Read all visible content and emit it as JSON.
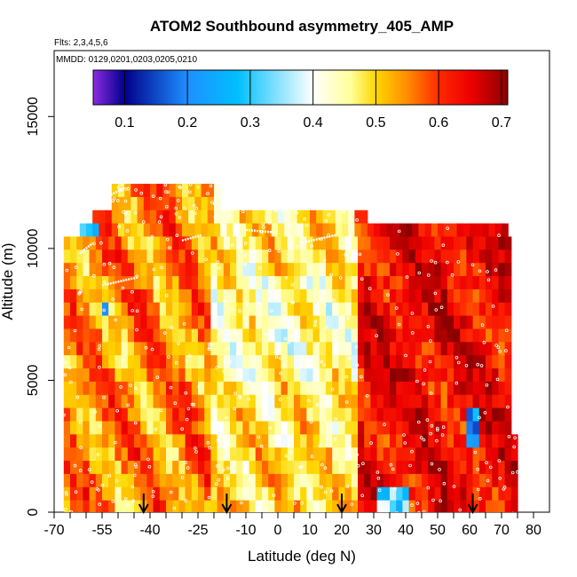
{
  "chart_data": {
    "type": "heatmap",
    "title": "ATOM2 Southbound asymmetry_405_AMP",
    "subtitle_flights": "Flts: 2,3,4,5,6",
    "subtitle_dates": "MMDD: 0129,0201,0203,0205,0210",
    "xlabel": "Latitude (deg N)",
    "ylabel": "Altitude (m)",
    "xlim": [
      -70,
      85
    ],
    "ylim": [
      0,
      17500
    ],
    "x_ticks": [
      -70,
      -55,
      -40,
      -25,
      -10,
      0,
      10,
      20,
      30,
      40,
      50,
      60,
      70,
      80
    ],
    "x_minor_ticks": [
      -65,
      -60,
      -50,
      -45,
      -35,
      -30,
      -20,
      -15,
      -5,
      5,
      15,
      25,
      35,
      45,
      55,
      65,
      75
    ],
    "y_ticks": [
      0,
      5000,
      10000,
      15000
    ],
    "colorbar": {
      "min": 0.05,
      "max": 0.71,
      "ticks": [
        "0.1",
        "0.2",
        "0.3",
        "0.4",
        "0.5",
        "0.6",
        "0.7"
      ],
      "tick_values": [
        0.1,
        0.2,
        0.3,
        0.4,
        0.5,
        0.6,
        0.7
      ],
      "stops": [
        {
          "v": 0.05,
          "c": "#8a2be2"
        },
        {
          "v": 0.1,
          "c": "#00008b"
        },
        {
          "v": 0.2,
          "c": "#1e90ff"
        },
        {
          "v": 0.28,
          "c": "#00bfff"
        },
        {
          "v": 0.4,
          "c": "#ffffff"
        },
        {
          "v": 0.46,
          "c": "#ffff99"
        },
        {
          "v": 0.5,
          "c": "#ffd700"
        },
        {
          "v": 0.55,
          "c": "#ff8c00"
        },
        {
          "v": 0.6,
          "c": "#ff2a00"
        },
        {
          "v": 0.65,
          "c": "#ee0000"
        },
        {
          "v": 0.71,
          "c": "#8b0000"
        }
      ]
    },
    "flight_arrows_latitude": [
      -42,
      -16,
      20,
      61
    ],
    "altitude_bands": [
      {
        "alt": 12200,
        "lat_min": -52,
        "lat_max": -18
      },
      {
        "alt": 11700,
        "lat_min": -52,
        "lat_max": -18
      },
      {
        "alt": 11200,
        "lat_min": -58,
        "lat_max": 27
      },
      {
        "alt": 10700,
        "lat_min": -62,
        "lat_max": 72
      },
      {
        "alt": 10200,
        "lat_min": -67,
        "lat_max": 72
      },
      {
        "alt": 9700,
        "lat_min": -67,
        "lat_max": 72
      },
      {
        "alt": 9200,
        "lat_min": -67,
        "lat_max": 72
      },
      {
        "alt": 8700,
        "lat_min": -67,
        "lat_max": 72
      },
      {
        "alt": 8200,
        "lat_min": -67,
        "lat_max": 72
      },
      {
        "alt": 7700,
        "lat_min": -67,
        "lat_max": 72
      },
      {
        "alt": 7200,
        "lat_min": -67,
        "lat_max": 72
      },
      {
        "alt": 6700,
        "lat_min": -67,
        "lat_max": 72
      },
      {
        "alt": 6200,
        "lat_min": -67,
        "lat_max": 72
      },
      {
        "alt": 5700,
        "lat_min": -67,
        "lat_max": 72
      },
      {
        "alt": 5200,
        "lat_min": -67,
        "lat_max": 72
      },
      {
        "alt": 4700,
        "lat_min": -67,
        "lat_max": 72
      },
      {
        "alt": 4200,
        "lat_min": -67,
        "lat_max": 72
      },
      {
        "alt": 3700,
        "lat_min": -67,
        "lat_max": 72
      },
      {
        "alt": 3200,
        "lat_min": -67,
        "lat_max": 72
      },
      {
        "alt": 2700,
        "lat_min": -67,
        "lat_max": 75
      },
      {
        "alt": 2200,
        "lat_min": -67,
        "lat_max": 75
      },
      {
        "alt": 1700,
        "lat_min": -67,
        "lat_max": 75
      },
      {
        "alt": 1200,
        "lat_min": -67,
        "lat_max": 75
      },
      {
        "alt": 700,
        "lat_min": -67,
        "lat_max": 75
      },
      {
        "alt": 200,
        "lat_min": -67,
        "lat_max": 75
      }
    ]
  },
  "colors": {
    "background": "#ffffff",
    "frame": "#000000",
    "points": "#ffffff",
    "arrow": "#000000"
  }
}
